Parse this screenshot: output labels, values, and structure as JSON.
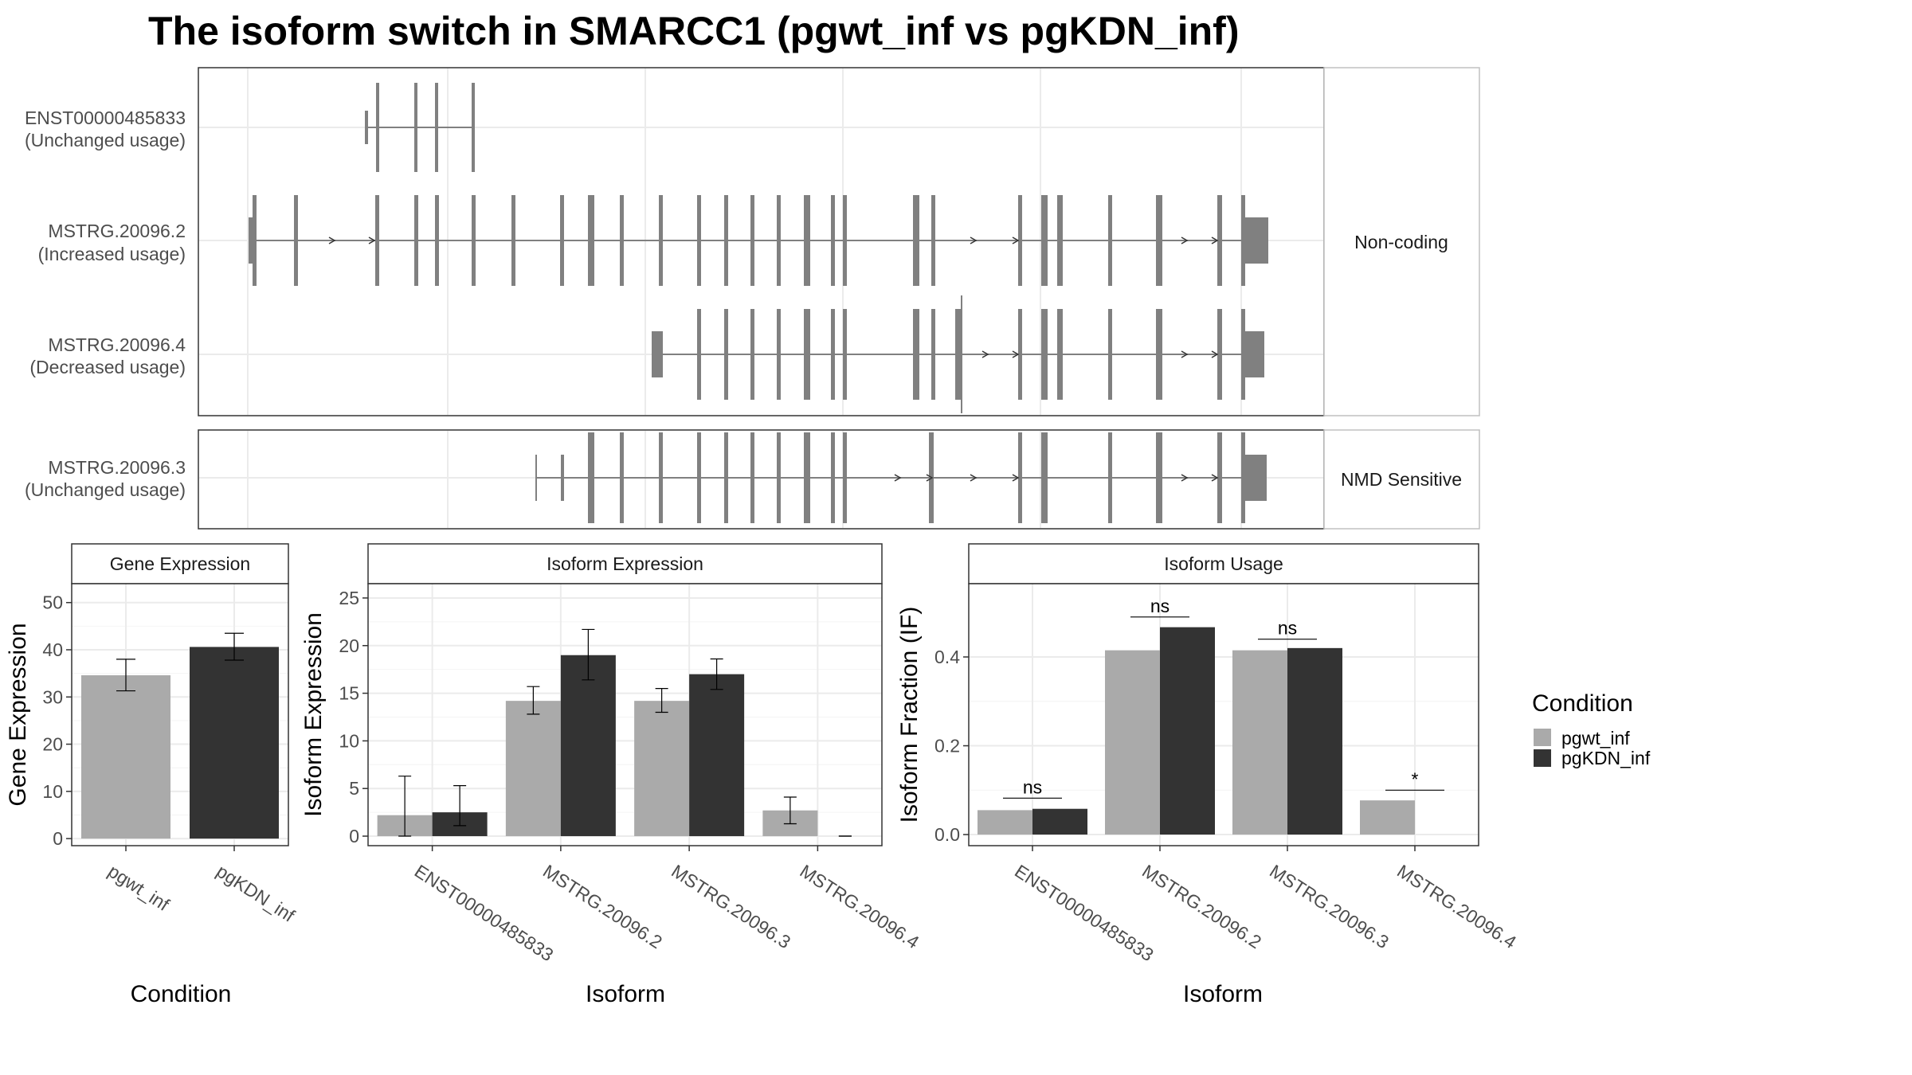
{
  "title": "The isoform switch in SMARCC1 (pgwt_inf vs pgKDN_inf)",
  "colors": {
    "pgwt_inf": "#aaaaaa",
    "pgKDN_inf": "#333333",
    "feature": "#808080",
    "grid": "#ebebeb",
    "border": "#333333",
    "strip_border": "#c0c0c0"
  },
  "structure": {
    "coding_label": "Non-coding",
    "nmd_label": "NMD Sensitive",
    "isoforms": [
      {
        "name": "ENST00000485833",
        "status": "(Unchanged usage)"
      },
      {
        "name": "MSTRG.20096.2",
        "status": "(Increased usage)"
      },
      {
        "name": "MSTRG.20096.4",
        "status": "(Decreased usage)"
      },
      {
        "name": "MSTRG.20096.3",
        "status": "(Unchanged usage)"
      }
    ]
  },
  "legend": {
    "title": "Condition",
    "items": [
      "pgwt_inf",
      "pgKDN_inf"
    ]
  },
  "chart_data": [
    {
      "type": "bar",
      "title": "Gene Expression",
      "xlabel": "Condition",
      "ylabel": "Gene Expression",
      "categories": [
        "pgwt_inf",
        "pgKDN_inf"
      ],
      "values": [
        34.6,
        40.6
      ],
      "error_low": [
        31.3,
        37.8
      ],
      "error_high": [
        38.0,
        43.5
      ],
      "ylim": [
        -1.5,
        54
      ],
      "yticks": [
        0,
        10,
        20,
        30,
        40,
        50
      ]
    },
    {
      "type": "bar",
      "title": "Isoform Expression",
      "xlabel": "Isoform",
      "ylabel": "Isoform Expression",
      "categories": [
        "ENST00000485833",
        "MSTRG.20096.2",
        "MSTRG.20096.3",
        "MSTRG.20096.4"
      ],
      "series": [
        {
          "name": "pgwt_inf",
          "values": [
            2.2,
            14.2,
            14.2,
            2.7
          ],
          "error_low": [
            0.0,
            12.8,
            13.0,
            1.3
          ],
          "error_high": [
            6.3,
            15.7,
            15.5,
            4.1
          ]
        },
        {
          "name": "pgKDN_inf",
          "values": [
            2.5,
            19.0,
            17.0,
            0.0
          ],
          "error_low": [
            1.1,
            16.4,
            15.4,
            0.0
          ],
          "error_high": [
            5.3,
            21.7,
            18.6,
            0.0
          ]
        }
      ],
      "ylim": [
        -1.0,
        26.5
      ],
      "yticks": [
        0,
        5,
        10,
        15,
        20,
        25
      ]
    },
    {
      "type": "bar",
      "title": "Isoform Usage",
      "xlabel": "Isoform",
      "ylabel": "Isoform Fraction (IF)",
      "categories": [
        "ENST00000485833",
        "MSTRG.20096.2",
        "MSTRG.20096.3",
        "MSTRG.20096.4"
      ],
      "series": [
        {
          "name": "pgwt_inf",
          "values": [
            0.055,
            0.415,
            0.415,
            0.077
          ]
        },
        {
          "name": "pgKDN_inf",
          "values": [
            0.058,
            0.467,
            0.42,
            0.0
          ]
        }
      ],
      "significance": [
        "ns",
        "ns",
        "ns",
        "*"
      ],
      "sig_level": [
        0.082,
        0.49,
        0.44,
        0.1
      ],
      "ylim": [
        -0.025,
        0.565
      ],
      "yticks": [
        0.0,
        0.2,
        0.4
      ],
      "ytick_labels": [
        "0.0",
        "0.2",
        "0.4"
      ]
    }
  ]
}
